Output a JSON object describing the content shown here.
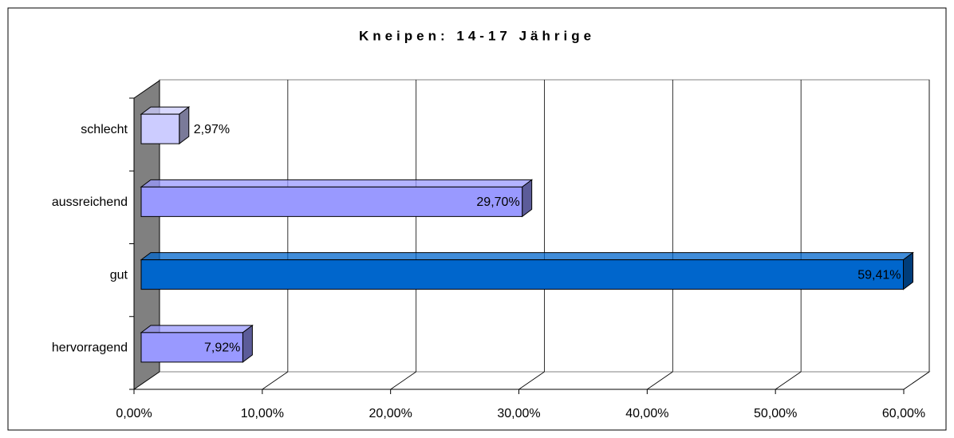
{
  "chart_data": {
    "type": "bar3d_horizontal",
    "title": "Kneipen: 14-17 Jährige",
    "categories": [
      "hervorragend",
      "gut",
      "aussreichend",
      "schlecht"
    ],
    "values": [
      7.92,
      59.41,
      29.7,
      2.97
    ],
    "value_labels": [
      "7,92%",
      "59,41%",
      "29,70%",
      "2,97%"
    ],
    "colors": [
      "#9999ff",
      "#0066cc",
      "#9999ff",
      "#ccccff"
    ],
    "xlim": [
      0,
      60
    ],
    "xticks": [
      {
        "value": 0,
        "label": "0,00%"
      },
      {
        "value": 10,
        "label": "10,00%"
      },
      {
        "value": 20,
        "label": "20,00%"
      },
      {
        "value": 30,
        "label": "30,00%"
      },
      {
        "value": 40,
        "label": "40,00%"
      },
      {
        "value": 50,
        "label": "50,00%"
      },
      {
        "value": 60,
        "label": "60,00%"
      }
    ],
    "grid": true
  }
}
